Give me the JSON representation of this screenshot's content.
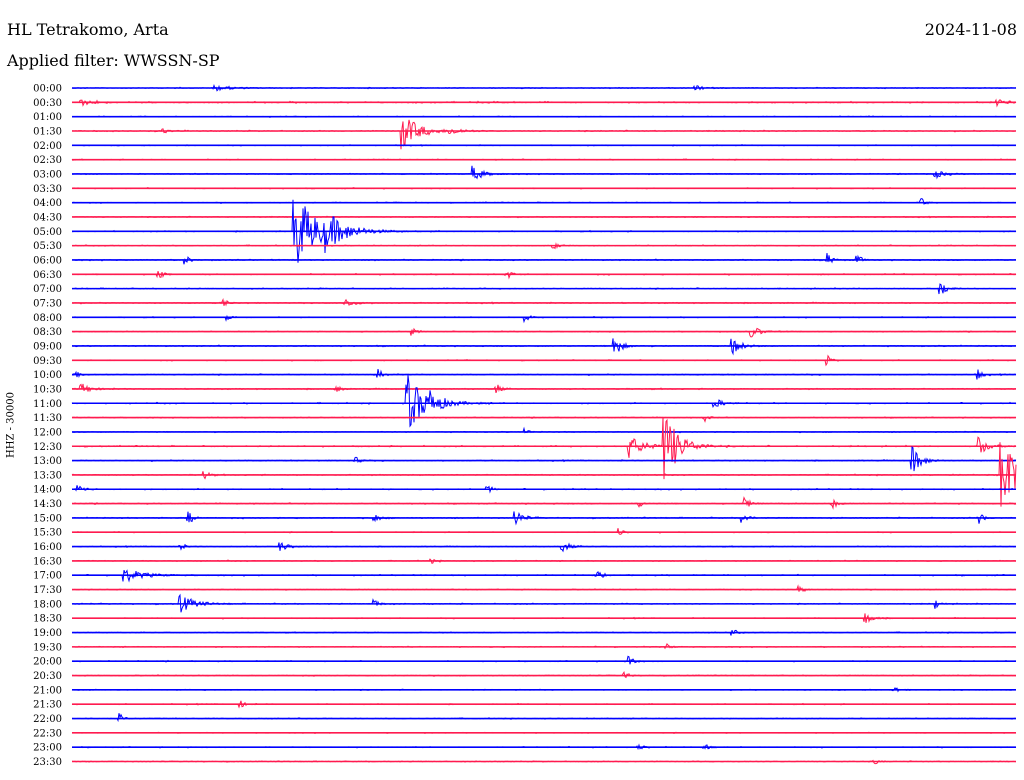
{
  "header": {
    "station": "HL Tetrakomo, Arta",
    "date": "2024-11-08",
    "filter_label": "Applied filter:",
    "filter_value": "WWSSN-SP"
  },
  "chart_data": {
    "type": "line",
    "title": "HL Tetrakomo, Arta",
    "date": "2024-11-08",
    "filter": "WWSSN-SP",
    "ylabel": "HHZ - 30000",
    "row_interval_minutes": 30,
    "colors": [
      "#0000ff",
      "#ff1a4f"
    ],
    "rows": [
      {
        "label": "00:00",
        "noise": 0.25,
        "events": [
          {
            "x": 0.15,
            "amp": 3,
            "width": 0.04
          },
          {
            "x": 0.66,
            "amp": 2.5,
            "width": 0.02
          }
        ]
      },
      {
        "label": "00:30",
        "noise": 0.35,
        "events": [
          {
            "x": 0.01,
            "amp": 3,
            "width": 0.03
          },
          {
            "x": 0.98,
            "amp": 3,
            "width": 0.03
          }
        ]
      },
      {
        "label": "01:00",
        "noise": 0.25,
        "events": []
      },
      {
        "label": "01:30",
        "noise": 0.3,
        "events": [
          {
            "x": 0.097,
            "amp": 3,
            "width": 0.01
          },
          {
            "x": 0.35,
            "amp": 18,
            "width": 0.035
          },
          {
            "x": 0.4,
            "amp": 3,
            "width": 0.03
          }
        ]
      },
      {
        "label": "02:00",
        "noise": 0.25,
        "events": []
      },
      {
        "label": "02:30",
        "noise": 0.25,
        "events": []
      },
      {
        "label": "03:00",
        "noise": 0.25,
        "events": [
          {
            "x": 0.425,
            "amp": 8,
            "width": 0.02
          },
          {
            "x": 0.915,
            "amp": 4,
            "width": 0.02
          }
        ]
      },
      {
        "label": "03:30",
        "noise": 0.25,
        "events": []
      },
      {
        "label": "04:00",
        "noise": 0.25,
        "events": [
          {
            "x": 0.9,
            "amp": 4,
            "width": 0.01
          }
        ]
      },
      {
        "label": "04:30",
        "noise": 0.25,
        "events": []
      },
      {
        "label": "05:00",
        "noise": 0.3,
        "events": [
          {
            "x": 0.236,
            "amp": 40,
            "width": 0.05
          },
          {
            "x": 0.27,
            "amp": 12,
            "width": 0.04
          }
        ]
      },
      {
        "label": "05:30",
        "noise": 0.25,
        "events": [
          {
            "x": 0.51,
            "amp": 4,
            "width": 0.01
          }
        ]
      },
      {
        "label": "06:00",
        "noise": 0.3,
        "events": [
          {
            "x": 0.12,
            "amp": 5,
            "width": 0.01
          },
          {
            "x": 0.8,
            "amp": 7,
            "width": 0.01
          },
          {
            "x": 0.832,
            "amp": 5,
            "width": 0.01
          }
        ]
      },
      {
        "label": "06:30",
        "noise": 0.3,
        "events": [
          {
            "x": 0.092,
            "amp": 6,
            "width": 0.01
          },
          {
            "x": 0.46,
            "amp": 6,
            "width": 0.01
          }
        ]
      },
      {
        "label": "07:00",
        "noise": 0.3,
        "events": [
          {
            "x": 0.92,
            "amp": 10,
            "width": 0.012
          }
        ]
      },
      {
        "label": "07:30",
        "noise": 0.3,
        "events": [
          {
            "x": 0.16,
            "amp": 5,
            "width": 0.01
          },
          {
            "x": 0.29,
            "amp": 4,
            "width": 0.02
          }
        ]
      },
      {
        "label": "08:00",
        "noise": 0.25,
        "events": [
          {
            "x": 0.165,
            "amp": 3,
            "width": 0.01
          },
          {
            "x": 0.48,
            "amp": 5,
            "width": 0.01
          }
        ]
      },
      {
        "label": "08:30",
        "noise": 0.25,
        "events": [
          {
            "x": 0.36,
            "amp": 4,
            "width": 0.01
          },
          {
            "x": 0.72,
            "amp": 6,
            "width": 0.02
          }
        ]
      },
      {
        "label": "09:00",
        "noise": 0.3,
        "events": [
          {
            "x": 0.573,
            "amp": 14,
            "width": 0.015
          },
          {
            "x": 0.7,
            "amp": 8,
            "width": 0.02
          }
        ]
      },
      {
        "label": "09:30",
        "noise": 0.25,
        "events": [
          {
            "x": 0.8,
            "amp": 5,
            "width": 0.01
          }
        ]
      },
      {
        "label": "10:00",
        "noise": 0.3,
        "events": [
          {
            "x": 0.004,
            "amp": 4,
            "width": 0.01
          },
          {
            "x": 0.325,
            "amp": 5,
            "width": 0.01
          },
          {
            "x": 0.96,
            "amp": 5,
            "width": 0.01
          }
        ]
      },
      {
        "label": "10:30",
        "noise": 0.3,
        "events": [
          {
            "x": 0.01,
            "amp": 6,
            "width": 0.02
          },
          {
            "x": 0.28,
            "amp": 4,
            "width": 0.01
          },
          {
            "x": 0.45,
            "amp": 5,
            "width": 0.01
          }
        ]
      },
      {
        "label": "11:00",
        "noise": 0.3,
        "events": [
          {
            "x": 0.355,
            "amp": 30,
            "width": 0.04
          },
          {
            "x": 0.38,
            "amp": 6,
            "width": 0.02
          },
          {
            "x": 0.68,
            "amp": 5,
            "width": 0.02
          }
        ]
      },
      {
        "label": "11:30",
        "noise": 0.25,
        "events": [
          {
            "x": 0.67,
            "amp": 4,
            "width": 0.01
          }
        ]
      },
      {
        "label": "12:00",
        "noise": 0.25,
        "events": [
          {
            "x": 0.48,
            "amp": 3,
            "width": 0.01
          }
        ]
      },
      {
        "label": "12:30",
        "noise": 0.35,
        "events": [
          {
            "x": 0.59,
            "amp": 12,
            "width": 0.03
          },
          {
            "x": 0.627,
            "amp": 40,
            "width": 0.03
          },
          {
            "x": 0.96,
            "amp": 10,
            "width": 0.02
          }
        ]
      },
      {
        "label": "13:00",
        "noise": 0.3,
        "events": [
          {
            "x": 0.3,
            "amp": 4,
            "width": 0.01
          },
          {
            "x": 0.89,
            "amp": 14,
            "width": 0.02
          }
        ]
      },
      {
        "label": "13:30",
        "noise": 0.3,
        "events": [
          {
            "x": 0.14,
            "amp": 5,
            "width": 0.01
          },
          {
            "x": 0.985,
            "amp": 45,
            "width": 0.03
          }
        ]
      },
      {
        "label": "14:00",
        "noise": 0.3,
        "events": [
          {
            "x": 0.005,
            "amp": 5,
            "width": 0.015
          },
          {
            "x": 0.44,
            "amp": 4,
            "width": 0.01
          }
        ]
      },
      {
        "label": "14:30",
        "noise": 0.3,
        "events": [
          {
            "x": 0.6,
            "amp": 4,
            "width": 0.01
          },
          {
            "x": 0.712,
            "amp": 7,
            "width": 0.012
          },
          {
            "x": 0.805,
            "amp": 6,
            "width": 0.01
          }
        ]
      },
      {
        "label": "15:00",
        "noise": 0.3,
        "events": [
          {
            "x": 0.123,
            "amp": 7,
            "width": 0.012
          },
          {
            "x": 0.32,
            "amp": 5,
            "width": 0.012
          },
          {
            "x": 0.47,
            "amp": 9,
            "width": 0.015
          },
          {
            "x": 0.71,
            "amp": 8,
            "width": 0.01
          },
          {
            "x": 0.96,
            "amp": 7,
            "width": 0.01
          }
        ]
      },
      {
        "label": "15:30",
        "noise": 0.25,
        "events": [
          {
            "x": 0.58,
            "amp": 4,
            "width": 0.01
          }
        ]
      },
      {
        "label": "16:00",
        "noise": 0.25,
        "events": [
          {
            "x": 0.115,
            "amp": 4,
            "width": 0.01
          },
          {
            "x": 0.221,
            "amp": 5,
            "width": 0.015
          },
          {
            "x": 0.52,
            "amp": 6,
            "width": 0.015
          }
        ]
      },
      {
        "label": "16:30",
        "noise": 0.25,
        "events": [
          {
            "x": 0.38,
            "amp": 3,
            "width": 0.01
          }
        ]
      },
      {
        "label": "17:00",
        "noise": 0.3,
        "events": [
          {
            "x": 0.055,
            "amp": 7,
            "width": 0.04
          },
          {
            "x": 0.556,
            "amp": 5,
            "width": 0.01
          }
        ]
      },
      {
        "label": "17:30",
        "noise": 0.25,
        "events": [
          {
            "x": 0.77,
            "amp": 5,
            "width": 0.01
          }
        ]
      },
      {
        "label": "18:00",
        "noise": 0.3,
        "events": [
          {
            "x": 0.115,
            "amp": 9,
            "width": 0.03
          },
          {
            "x": 0.32,
            "amp": 5,
            "width": 0.01
          },
          {
            "x": 0.915,
            "amp": 5,
            "width": 0.01
          }
        ]
      },
      {
        "label": "18:30",
        "noise": 0.25,
        "events": [
          {
            "x": 0.84,
            "amp": 6,
            "width": 0.015
          }
        ]
      },
      {
        "label": "19:00",
        "noise": 0.25,
        "events": [
          {
            "x": 0.7,
            "amp": 3,
            "width": 0.01
          }
        ]
      },
      {
        "label": "19:30",
        "noise": 0.25,
        "events": [
          {
            "x": 0.63,
            "amp": 3,
            "width": 0.01
          }
        ]
      },
      {
        "label": "20:00",
        "noise": 0.25,
        "events": [
          {
            "x": 0.59,
            "amp": 5,
            "width": 0.01
          }
        ]
      },
      {
        "label": "20:30",
        "noise": 0.25,
        "events": [
          {
            "x": 0.585,
            "amp": 4,
            "width": 0.01
          }
        ]
      },
      {
        "label": "21:00",
        "noise": 0.25,
        "events": [
          {
            "x": 0.87,
            "amp": 4,
            "width": 0.01
          }
        ]
      },
      {
        "label": "21:30",
        "noise": 0.25,
        "events": [
          {
            "x": 0.178,
            "amp": 4,
            "width": 0.01
          }
        ]
      },
      {
        "label": "22:00",
        "noise": 0.25,
        "events": [
          {
            "x": 0.05,
            "amp": 5,
            "width": 0.01
          }
        ]
      },
      {
        "label": "22:30",
        "noise": 0.2,
        "events": []
      },
      {
        "label": "23:00",
        "noise": 0.25,
        "events": [
          {
            "x": 0.6,
            "amp": 3,
            "width": 0.01
          },
          {
            "x": 0.67,
            "amp": 4,
            "width": 0.01
          }
        ]
      },
      {
        "label": "23:30",
        "noise": 0.25,
        "events": [
          {
            "x": 0.85,
            "amp": 3,
            "width": 0.01
          }
        ]
      }
    ]
  }
}
